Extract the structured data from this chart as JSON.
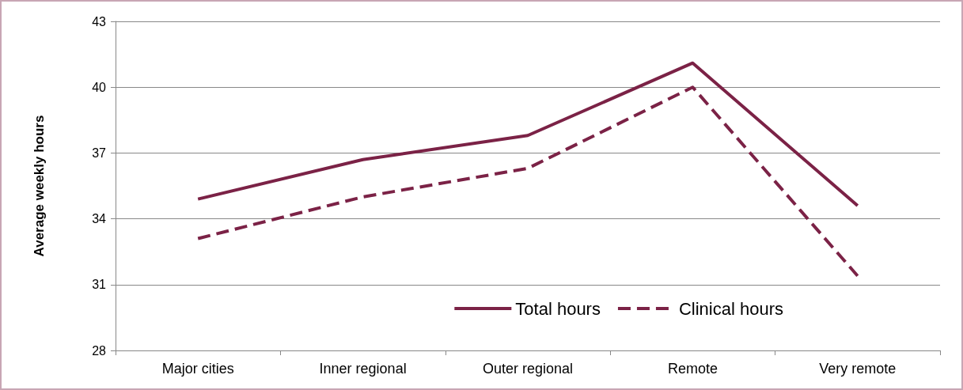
{
  "chart_data": {
    "type": "line",
    "ylabel": "Average weekly hours",
    "categories": [
      "Major cities",
      "Inner regional",
      "Outer regional",
      "Remote",
      "Very remote"
    ],
    "series": [
      {
        "name": "Total hours",
        "color": "#7b2246",
        "values": [
          34.9,
          36.7,
          37.8,
          41.1,
          34.6
        ],
        "line_style": "solid"
      },
      {
        "name": "Clinical hours",
        "color": "#7b2246",
        "values": [
          33.1,
          35.0,
          36.3,
          40.0,
          31.4
        ],
        "line_style": "dashed"
      }
    ],
    "ylim": [
      28,
      43
    ],
    "yticks": [
      28,
      31,
      34,
      37,
      40,
      43
    ],
    "grid": "y",
    "legend": "bottom right",
    "marker": "none"
  }
}
